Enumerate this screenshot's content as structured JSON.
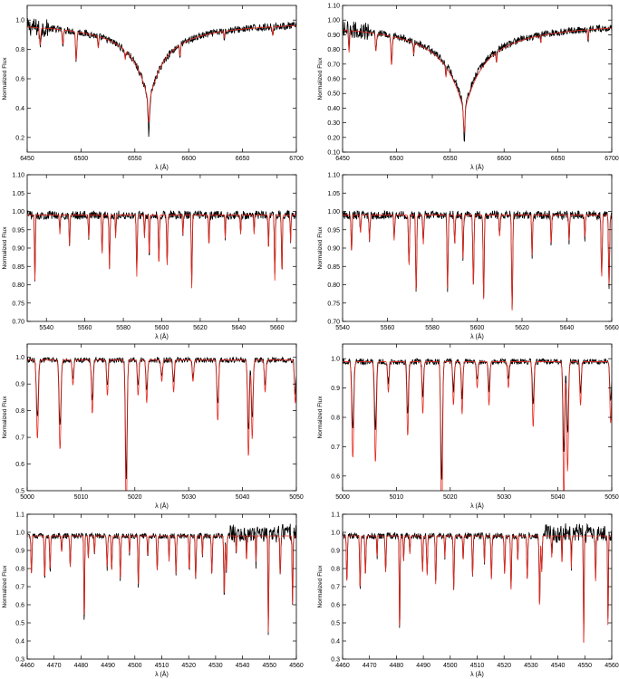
{
  "colors": {
    "observed": "#000000",
    "model": "#e8281e"
  },
  "chart_data": [
    {
      "type": "line",
      "panel": "top-left",
      "xlabel": "λ (Å)",
      "ylabel": "Normalized Flux",
      "xlim": [
        6450,
        6700
      ],
      "ylim": [
        0.1,
        1.1
      ],
      "xticks": [
        6450,
        6500,
        6550,
        6600,
        6650,
        6700
      ],
      "yticks": [
        0.2,
        0.4,
        0.6,
        0.8,
        1.0
      ],
      "ytick_decimals": 1,
      "continuum": 1.0,
      "noise": 0.025,
      "noise_hi_end": 6470,
      "profile": {
        "center": 6563,
        "depth": 0.78,
        "width": 14,
        "model_depth": 0.7
      },
      "lines": [
        [
          6495.5,
          0.2,
          0.8
        ],
        [
          6516,
          0.08,
          0.7
        ],
        [
          6541,
          0.06,
          0.6
        ],
        [
          6592,
          0.08,
          0.6
        ],
        [
          6633,
          0.05,
          0.5
        ],
        [
          6678,
          0.06,
          0.6
        ],
        [
          6462,
          0.12,
          0.8
        ],
        [
          6483,
          0.1,
          0.8
        ]
      ]
    },
    {
      "type": "line",
      "panel": "top-right",
      "xlabel": "λ (Å)",
      "ylabel": "Normalized Flux",
      "xlim": [
        6450,
        6700
      ],
      "ylim": [
        0.1,
        1.1
      ],
      "xticks": [
        6450,
        6500,
        6550,
        6600,
        6650,
        6700
      ],
      "yticks": [
        0.1,
        0.2,
        0.3,
        0.4,
        0.5,
        0.6,
        0.7,
        0.8,
        0.9,
        1.0,
        1.1
      ],
      "ytick_decimals": 2,
      "continuum": 1.0,
      "noise": 0.025,
      "noise_hi_end": 6475,
      "profile": {
        "center": 6563,
        "depth": 0.82,
        "width": 18,
        "model_depth": 0.8
      },
      "lines": [
        [
          6495.5,
          0.2,
          0.8
        ],
        [
          6456,
          0.15,
          0.7
        ],
        [
          6516,
          0.08,
          0.7
        ],
        [
          6546,
          0.07,
          0.6
        ],
        [
          6593,
          0.07,
          0.6
        ],
        [
          6634,
          0.05,
          0.5
        ],
        [
          6678,
          0.07,
          0.6
        ],
        [
          6481,
          0.12,
          0.8
        ]
      ]
    },
    {
      "type": "line",
      "panel": "row2-left",
      "xlabel": "λ (Å)",
      "ylabel": "Normalized Flux",
      "xlim": [
        5530,
        5670
      ],
      "ylim": [
        0.7,
        1.1
      ],
      "xticks": [
        5540,
        5560,
        5580,
        5600,
        5620,
        5640,
        5660
      ],
      "yticks": [
        0.7,
        0.75,
        0.8,
        0.85,
        0.9,
        0.95,
        1.0,
        1.05,
        1.1
      ],
      "ytick_decimals": 2,
      "continuum": 0.99,
      "noise": 0.012,
      "noise_hi_end": 5530,
      "lines": [
        [
          5534,
          0.17,
          0.35
        ],
        [
          5552,
          0.08,
          0.35
        ],
        [
          5562,
          0.06,
          0.3
        ],
        [
          5569,
          0.1,
          0.35
        ],
        [
          5572.8,
          0.14,
          0.35
        ],
        [
          5576,
          0.06,
          0.3
        ],
        [
          5587,
          0.16,
          0.35
        ],
        [
          5591,
          0.06,
          0.3
        ],
        [
          5593.5,
          0.11,
          0.3
        ],
        [
          5598.5,
          0.13,
          0.35
        ],
        [
          5602.8,
          0.13,
          0.35
        ],
        [
          5615.6,
          0.19,
          0.35
        ],
        [
          5624.5,
          0.08,
          0.3
        ],
        [
          5633,
          0.06,
          0.3
        ],
        [
          5641,
          0.05,
          0.3
        ],
        [
          5655.5,
          0.09,
          0.3
        ],
        [
          5658.8,
          0.17,
          0.35
        ],
        [
          5662.5,
          0.15,
          0.35
        ],
        [
          5667,
          0.07,
          0.3
        ],
        [
          5547,
          0.05,
          0.3
        ],
        [
          5611,
          0.05,
          0.3
        ],
        [
          5648,
          0.05,
          0.3
        ]
      ],
      "model_scale": 1.05
    },
    {
      "type": "line",
      "panel": "row2-right",
      "xlabel": "λ (Å)",
      "ylabel": "Normalized Flux",
      "xlim": [
        5540,
        5660
      ],
      "ylim": [
        0.7,
        1.1
      ],
      "xticks": [
        5540,
        5560,
        5580,
        5600,
        5620,
        5640,
        5660
      ],
      "yticks": [
        0.7,
        0.75,
        0.8,
        0.85,
        0.9,
        0.95,
        1.0,
        1.05,
        1.1
      ],
      "ytick_decimals": 2,
      "continuum": 0.99,
      "noise": 0.012,
      "noise_hi_end": 5540,
      "lines": [
        [
          5544,
          0.1,
          0.3
        ],
        [
          5552,
          0.07,
          0.3
        ],
        [
          5563,
          0.07,
          0.3
        ],
        [
          5569.6,
          0.14,
          0.35
        ],
        [
          5572.8,
          0.21,
          0.35
        ],
        [
          5576,
          0.08,
          0.3
        ],
        [
          5586.8,
          0.2,
          0.35
        ],
        [
          5590,
          0.08,
          0.3
        ],
        [
          5593.7,
          0.12,
          0.3
        ],
        [
          5598.3,
          0.19,
          0.35
        ],
        [
          5602.9,
          0.23,
          0.35
        ],
        [
          5615.6,
          0.26,
          0.35
        ],
        [
          5624.5,
          0.11,
          0.3
        ],
        [
          5633,
          0.08,
          0.3
        ],
        [
          5641,
          0.07,
          0.3
        ],
        [
          5655.5,
          0.17,
          0.35
        ],
        [
          5658.8,
          0.19,
          0.35
        ],
        [
          5548,
          0.05,
          0.3
        ],
        [
          5610,
          0.06,
          0.3
        ],
        [
          5648,
          0.06,
          0.3
        ]
      ],
      "model_scale": 1.0
    },
    {
      "type": "line",
      "panel": "row3-left",
      "xlabel": "λ (Å)",
      "ylabel": "Normalized Flux",
      "xlim": [
        5000,
        5050
      ],
      "ylim": [
        0.5,
        1.05
      ],
      "xticks": [
        5000,
        5010,
        5020,
        5030,
        5040,
        5050
      ],
      "yticks": [
        0.5,
        0.6,
        0.7,
        0.8,
        0.9,
        1.0
      ],
      "ytick_decimals": 1,
      "continuum": 0.99,
      "noise": 0.01,
      "noise_hi_end": 5000,
      "lines": [
        [
          5001.9,
          0.22,
          0.25
        ],
        [
          5006.1,
          0.25,
          0.25
        ],
        [
          5012.1,
          0.15,
          0.22
        ],
        [
          5014.9,
          0.1,
          0.2
        ],
        [
          5018.4,
          0.45,
          0.22
        ],
        [
          5020.6,
          0.1,
          0.2
        ],
        [
          5022.2,
          0.12,
          0.2
        ],
        [
          5027.2,
          0.09,
          0.2
        ],
        [
          5030.8,
          0.06,
          0.2
        ],
        [
          5035.4,
          0.17,
          0.22
        ],
        [
          5041.1,
          0.27,
          0.22
        ],
        [
          5041.8,
          0.22,
          0.22
        ],
        [
          5044.2,
          0.09,
          0.2
        ],
        [
          5049.8,
          0.12,
          0.22
        ],
        [
          5008.5,
          0.07,
          0.2
        ],
        [
          5025.0,
          0.06,
          0.2
        ]
      ],
      "model_scale": 1.35
    },
    {
      "type": "line",
      "panel": "row3-right",
      "xlabel": "λ (Å)",
      "ylabel": "Normalized Flux",
      "xlim": [
        5000,
        5050
      ],
      "ylim": [
        0.55,
        1.05
      ],
      "xticks": [
        5000,
        5010,
        5020,
        5030,
        5040,
        5050
      ],
      "yticks": [
        0.6,
        0.7,
        0.8,
        0.9,
        1.0
      ],
      "ytick_decimals": 1,
      "continuum": 0.99,
      "noise": 0.01,
      "noise_hi_end": 5000,
      "lines": [
        [
          5001.9,
          0.22,
          0.25
        ],
        [
          5006.1,
          0.23,
          0.25
        ],
        [
          5012.1,
          0.17,
          0.22
        ],
        [
          5014.9,
          0.12,
          0.2
        ],
        [
          5018.4,
          0.41,
          0.22
        ],
        [
          5020.6,
          0.1,
          0.2
        ],
        [
          5022.2,
          0.12,
          0.2
        ],
        [
          5027.2,
          0.1,
          0.2
        ],
        [
          5030.8,
          0.06,
          0.2
        ],
        [
          5035.4,
          0.15,
          0.22
        ],
        [
          5041.1,
          0.32,
          0.22
        ],
        [
          5041.8,
          0.25,
          0.22
        ],
        [
          5044.2,
          0.1,
          0.2
        ],
        [
          5049.8,
          0.14,
          0.22
        ],
        [
          5008.5,
          0.07,
          0.2
        ],
        [
          5025.0,
          0.06,
          0.2
        ]
      ],
      "model_scale": 1.5
    },
    {
      "type": "line",
      "panel": "bottom-left",
      "xlabel": "λ (Å)",
      "ylabel": "Normalized Flux",
      "xlim": [
        4460,
        4560
      ],
      "ylim": [
        0.3,
        1.1
      ],
      "xticks": [
        4460,
        4470,
        4480,
        4490,
        4500,
        4510,
        4520,
        4530,
        4540,
        4550,
        4560
      ],
      "yticks": [
        0.3,
        0.4,
        0.5,
        0.6,
        0.7,
        0.8,
        0.9,
        1.0,
        1.1
      ],
      "ytick_decimals": 1,
      "continuum": 0.98,
      "noise": 0.015,
      "noise_hi_end": 4460,
      "lines": [
        [
          4461.6,
          0.22,
          0.25
        ],
        [
          4466.5,
          0.25,
          0.25
        ],
        [
          4468.5,
          0.2,
          0.25
        ],
        [
          4476.0,
          0.18,
          0.25
        ],
        [
          4481.2,
          0.49,
          0.22
        ],
        [
          4482.7,
          0.13,
          0.2
        ],
        [
          4489.7,
          0.18,
          0.25
        ],
        [
          4491.4,
          0.2,
          0.25
        ],
        [
          4494.6,
          0.25,
          0.25
        ],
        [
          4501.3,
          0.28,
          0.25
        ],
        [
          4508.3,
          0.2,
          0.25
        ],
        [
          4512.7,
          0.15,
          0.2
        ],
        [
          4515.3,
          0.22,
          0.25
        ],
        [
          4520.2,
          0.2,
          0.25
        ],
        [
          4522.6,
          0.25,
          0.25
        ],
        [
          4528.6,
          0.22,
          0.25
        ],
        [
          4533.2,
          0.35,
          0.25
        ],
        [
          4534.0,
          0.2,
          0.25
        ],
        [
          4541.5,
          0.15,
          0.2
        ],
        [
          4545.0,
          0.15,
          0.2
        ],
        [
          4549.6,
          0.57,
          0.22
        ],
        [
          4554.0,
          0.22,
          0.25
        ],
        [
          4558.6,
          0.4,
          0.22
        ],
        [
          4472.8,
          0.1,
          0.2
        ],
        [
          4485.0,
          0.1,
          0.2
        ],
        [
          4498.0,
          0.1,
          0.2
        ],
        [
          4504.8,
          0.12,
          0.2
        ],
        [
          4525.1,
          0.12,
          0.2
        ],
        [
          4537.7,
          0.1,
          0.2
        ]
      ],
      "model_scale": 0.95
    },
    {
      "type": "line",
      "panel": "bottom-right",
      "xlabel": "λ (Å)",
      "ylabel": "Normalized Flux",
      "xlim": [
        4460,
        4560
      ],
      "ylim": [
        0.3,
        1.1
      ],
      "xticks": [
        4460,
        4470,
        4480,
        4490,
        4500,
        4510,
        4520,
        4530,
        4540,
        4550,
        4560
      ],
      "yticks": [
        0.3,
        0.4,
        0.5,
        0.6,
        0.7,
        0.8,
        0.9,
        1.0,
        1.1
      ],
      "ytick_decimals": 1,
      "continuum": 0.98,
      "noise": 0.018,
      "noise_hi_end": 4460,
      "lines": [
        [
          4461.6,
          0.25,
          0.25
        ],
        [
          4466.5,
          0.3,
          0.25
        ],
        [
          4468.5,
          0.22,
          0.25
        ],
        [
          4476.0,
          0.2,
          0.25
        ],
        [
          4481.2,
          0.53,
          0.22
        ],
        [
          4482.7,
          0.14,
          0.2
        ],
        [
          4489.7,
          0.2,
          0.25
        ],
        [
          4491.4,
          0.22,
          0.25
        ],
        [
          4494.6,
          0.27,
          0.25
        ],
        [
          4501.3,
          0.3,
          0.25
        ],
        [
          4508.3,
          0.22,
          0.25
        ],
        [
          4512.7,
          0.15,
          0.2
        ],
        [
          4515.3,
          0.24,
          0.25
        ],
        [
          4520.2,
          0.22,
          0.25
        ],
        [
          4522.6,
          0.3,
          0.25
        ],
        [
          4528.6,
          0.24,
          0.25
        ],
        [
          4533.2,
          0.4,
          0.25
        ],
        [
          4534.0,
          0.2,
          0.25
        ],
        [
          4541.5,
          0.16,
          0.2
        ],
        [
          4545.0,
          0.18,
          0.2
        ],
        [
          4549.6,
          0.6,
          0.22
        ],
        [
          4554.0,
          0.25,
          0.25
        ],
        [
          4558.6,
          0.5,
          0.22
        ],
        [
          4472.8,
          0.12,
          0.2
        ],
        [
          4485.0,
          0.1,
          0.2
        ],
        [
          4498.0,
          0.12,
          0.2
        ],
        [
          4504.8,
          0.14,
          0.2
        ],
        [
          4525.1,
          0.14,
          0.2
        ],
        [
          4537.7,
          0.12,
          0.2
        ]
      ],
      "model_scale": 1.0
    }
  ]
}
